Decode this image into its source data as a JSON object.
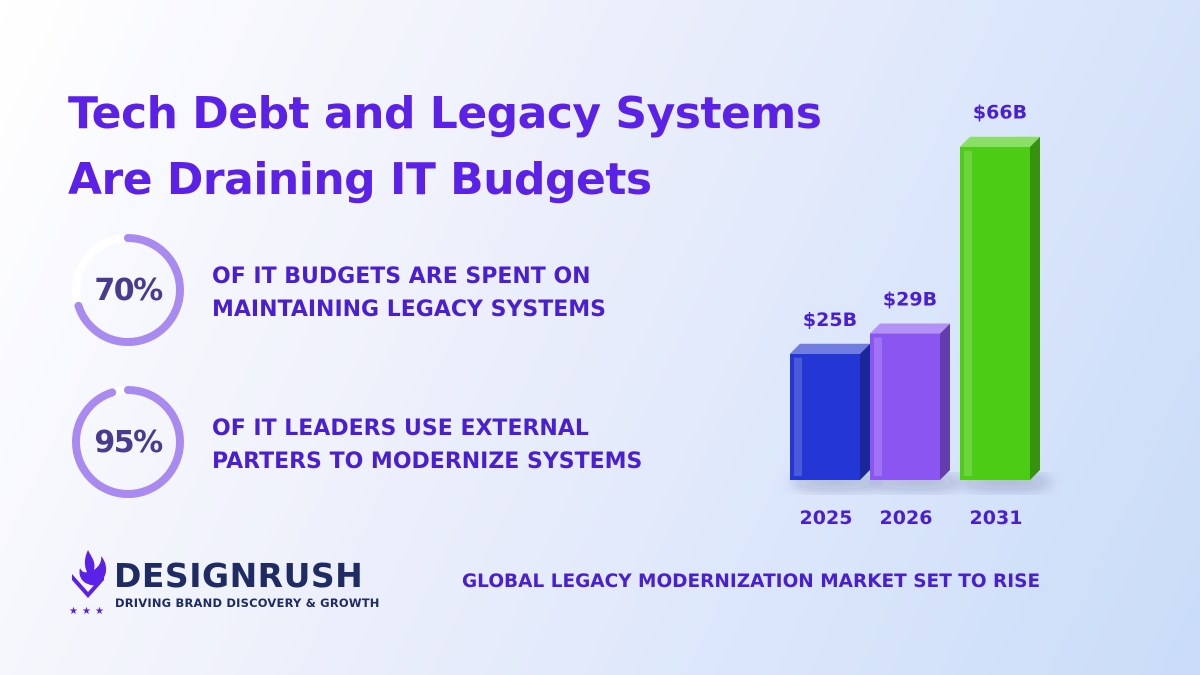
{
  "title": {
    "line1": "Tech Debt and Legacy Systems",
    "line2": "Are Draining IT Budgets"
  },
  "stats": [
    {
      "value": "70%",
      "fraction": 0.7,
      "line1": "OF IT BUDGETS ARE SPENT ON",
      "line2": "MAINTAINING LEGACY SYSTEMS"
    },
    {
      "value": "95%",
      "fraction": 0.95,
      "line1": "OF IT LEADERS USE EXTERNAL",
      "line2": "PARTERS TO MODERNIZE SYSTEMS"
    }
  ],
  "chart_data": {
    "type": "bar",
    "title": "GLOBAL LEGACY MODERNIZATION MARKET SET TO RISE",
    "categories": [
      "2025",
      "2026",
      "2031"
    ],
    "values": [
      25,
      29,
      66
    ],
    "value_labels": [
      "$25B",
      "$29B",
      "$66B"
    ],
    "unit": "$B",
    "colors": [
      "#2436d4",
      "#8a55f0",
      "#4ccc14"
    ],
    "grid": false,
    "legend": "none"
  },
  "logo": {
    "name": "DESIGNRUSH",
    "tagline": "DRIVING BRAND DISCOVERY & GROWTH"
  },
  "colors": {
    "accent": "#5b21e6",
    "heading": "#4a1fd1",
    "ring_track": "#ffffff",
    "ring_fill": "#a88af0",
    "logo_navy": "#1f2b63"
  },
  "icons": {
    "logo": "designrush-flame-logo",
    "stars": "star-icon"
  }
}
